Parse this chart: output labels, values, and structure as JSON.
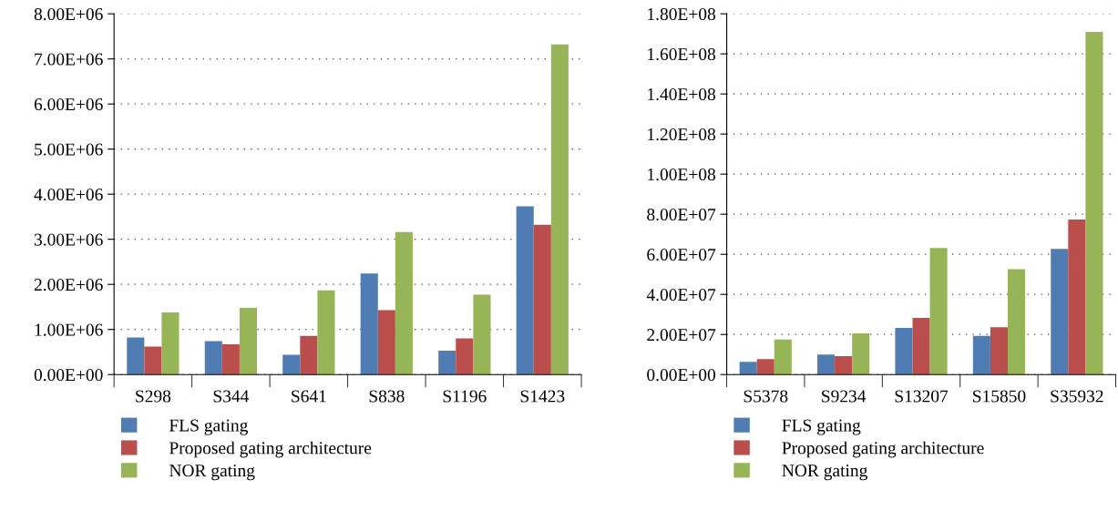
{
  "chart_data": [
    {
      "type": "bar",
      "categories": [
        "S298",
        "S344",
        "S641",
        "S838",
        "S1196",
        "S1423"
      ],
      "series": [
        {
          "name": "FLS gating",
          "color": "#4f7db3",
          "values": [
            820000,
            740000,
            440000,
            2240000,
            530000,
            3730000
          ]
        },
        {
          "name": "Proposed gating architecture",
          "color": "#b94e4c",
          "values": [
            620000,
            670000,
            860000,
            1430000,
            800000,
            3320000
          ]
        },
        {
          "name": "NOR gating",
          "color": "#97b557",
          "values": [
            1380000,
            1480000,
            1870000,
            3160000,
            1770000,
            7320000
          ]
        }
      ],
      "ylim": [
        0,
        8000000
      ],
      "yticks": [
        {
          "value": 0,
          "label": "0.00E+00"
        },
        {
          "value": 1000000,
          "label": "1.00E+06"
        },
        {
          "value": 2000000,
          "label": "2.00E+06"
        },
        {
          "value": 3000000,
          "label": "3.00E+06"
        },
        {
          "value": 4000000,
          "label": "4.00E+06"
        },
        {
          "value": 5000000,
          "label": "5.00E+06"
        },
        {
          "value": 6000000,
          "label": "6.00E+06"
        },
        {
          "value": 7000000,
          "label": "7.00E+06"
        },
        {
          "value": 8000000,
          "label": "8.00E+06"
        }
      ],
      "grid": "y",
      "legend": "bottom"
    },
    {
      "type": "bar",
      "categories": [
        "S5378",
        "S9234",
        "S13207",
        "S15850",
        "S35932"
      ],
      "series": [
        {
          "name": "FLS gating",
          "color": "#4f7db3",
          "values": [
            6300000,
            10000000,
            23300000,
            19300000,
            62700000
          ]
        },
        {
          "name": "Proposed gating architecture",
          "color": "#b94e4c",
          "values": [
            7700000,
            9200000,
            28300000,
            23600000,
            77400000
          ]
        },
        {
          "name": "NOR gating",
          "color": "#97b557",
          "values": [
            17500000,
            20600000,
            63100000,
            52600000,
            171000000
          ]
        }
      ],
      "ylim": [
        0,
        180000000
      ],
      "yticks": [
        {
          "value": 0,
          "label": "0.00E+00"
        },
        {
          "value": 20000000,
          "label": "2.00E+07"
        },
        {
          "value": 40000000,
          "label": "4.00E+07"
        },
        {
          "value": 60000000,
          "label": "6.00E+07"
        },
        {
          "value": 80000000,
          "label": "8.00E+07"
        },
        {
          "value": 100000000,
          "label": "1.00E+08"
        },
        {
          "value": 120000000,
          "label": "1.20E+08"
        },
        {
          "value": 140000000,
          "label": "1.40E+08"
        },
        {
          "value": 160000000,
          "label": "1.60E+08"
        },
        {
          "value": 180000000,
          "label": "1.80E+08"
        }
      ],
      "grid": "y",
      "legend": "bottom"
    }
  ]
}
